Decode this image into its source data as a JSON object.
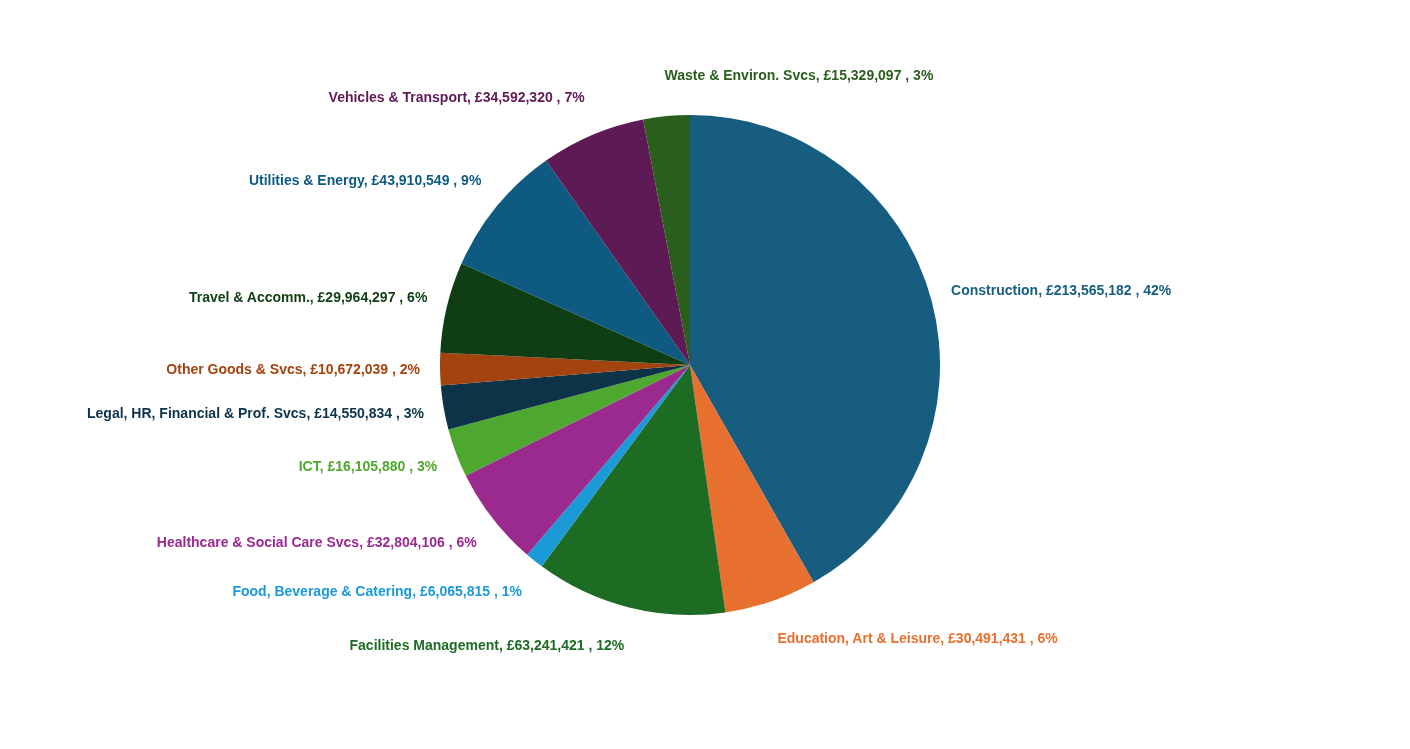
{
  "chart_data": {
    "type": "pie",
    "categories": [
      "Construction",
      "Education, Art & Leisure",
      "Facilities Management",
      "Food, Beverage & Catering",
      "Healthcare & Social Care Svcs",
      "ICT",
      "Legal, HR, Financial & Prof. Svcs",
      "Other Goods & Svcs",
      "Travel & Accomm.",
      "Utilities & Energy",
      "Vehicles & Transport",
      "Waste & Environ. Svcs"
    ],
    "values": [
      213565182,
      30491431,
      63241421,
      6065815,
      32804106,
      16105880,
      14550834,
      10672039,
      29964297,
      43910549,
      34592320,
      15329097
    ],
    "colors": [
      "#175d7f",
      "#e8702f",
      "#1e6b23",
      "#1a9ad6",
      "#9b2a8f",
      "#4ea72e",
      "#0d3349",
      "#a3430f",
      "#0f3e14",
      "#0e5a80",
      "#5e1a55",
      "#2a5e1d"
    ],
    "value_labels": [
      "£213,565,182 , 42%",
      "£30,491,431 , 6%",
      "£63,241,421 , 12%",
      "£6,065,815 , 1%",
      "£32,804,106 , 6%",
      "£16,105,880 , 3%",
      "£14,550,834 , 3%",
      "£10,672,039 , 2%",
      "£29,964,297 , 6%",
      "£43,910,549 , 9%",
      "£34,592,320 , 7%",
      "£15,329,097 , 3%"
    ]
  }
}
